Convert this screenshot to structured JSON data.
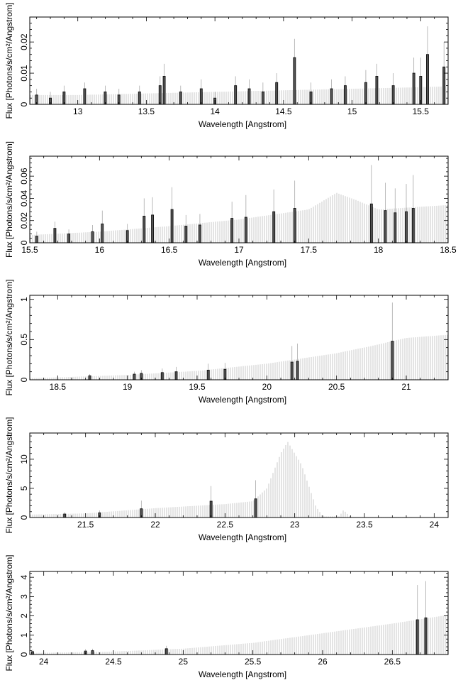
{
  "chart_data": [
    {
      "type": "bar",
      "xlabel": "Wavelength [Angstrom]",
      "ylabel": "Flux [Photons/s/cm²/Angstrom]",
      "xlim": [
        12.65,
        15.7
      ],
      "ylim": [
        0,
        0.028
      ],
      "xticks": [
        13,
        13.5,
        14,
        14.5,
        15,
        15.5
      ],
      "xtick_labels": [
        "13",
        "13.5",
        "14",
        "14.5",
        "15",
        "15.5"
      ],
      "yticks": [
        0,
        0.01,
        0.02
      ],
      "ytick_labels": [
        "0",
        "0.01",
        "0.02"
      ],
      "model": [
        [
          12.65,
          0.003
        ],
        [
          13.0,
          0.003
        ],
        [
          13.5,
          0.0035
        ],
        [
          14.0,
          0.004
        ],
        [
          14.5,
          0.0045
        ],
        [
          15.0,
          0.005
        ],
        [
          15.5,
          0.0055
        ],
        [
          15.7,
          0.0058
        ]
      ],
      "observed": [
        {
          "x": 12.7,
          "y": 0.003,
          "err": 0.002
        },
        {
          "x": 12.8,
          "y": 0.002,
          "err": 0.002
        },
        {
          "x": 12.9,
          "y": 0.004,
          "err": 0.002
        },
        {
          "x": 13.05,
          "y": 0.005,
          "err": 0.002
        },
        {
          "x": 13.2,
          "y": 0.004,
          "err": 0.002
        },
        {
          "x": 13.3,
          "y": 0.003,
          "err": 0.002
        },
        {
          "x": 13.45,
          "y": 0.004,
          "err": 0.002
        },
        {
          "x": 13.6,
          "y": 0.006,
          "err": 0.003
        },
        {
          "x": 13.63,
          "y": 0.009,
          "err": 0.004
        },
        {
          "x": 13.75,
          "y": 0.004,
          "err": 0.002
        },
        {
          "x": 13.9,
          "y": 0.005,
          "err": 0.003
        },
        {
          "x": 14.0,
          "y": 0.002,
          "err": 0.002
        },
        {
          "x": 14.15,
          "y": 0.006,
          "err": 0.003
        },
        {
          "x": 14.25,
          "y": 0.005,
          "err": 0.003
        },
        {
          "x": 14.35,
          "y": 0.004,
          "err": 0.003
        },
        {
          "x": 14.45,
          "y": 0.007,
          "err": 0.003
        },
        {
          "x": 14.58,
          "y": 0.015,
          "err": 0.006
        },
        {
          "x": 14.7,
          "y": 0.004,
          "err": 0.003
        },
        {
          "x": 14.85,
          "y": 0.005,
          "err": 0.003
        },
        {
          "x": 14.95,
          "y": 0.006,
          "err": 0.003
        },
        {
          "x": 15.1,
          "y": 0.007,
          "err": 0.004
        },
        {
          "x": 15.18,
          "y": 0.009,
          "err": 0.004
        },
        {
          "x": 15.3,
          "y": 0.006,
          "err": 0.004
        },
        {
          "x": 15.45,
          "y": 0.01,
          "err": 0.005
        },
        {
          "x": 15.5,
          "y": 0.009,
          "err": 0.006
        },
        {
          "x": 15.55,
          "y": 0.016,
          "err": 0.009
        },
        {
          "x": 15.67,
          "y": 0.012,
          "err": 0.008
        }
      ]
    },
    {
      "type": "bar",
      "xlabel": "Wavelength [Angstrom]",
      "ylabel": "Flux [Photons/s/cm²/Angstrom]",
      "xlim": [
        15.5,
        18.5
      ],
      "ylim": [
        0,
        0.078
      ],
      "xticks": [
        15.5,
        16,
        16.5,
        17,
        17.5,
        18,
        18.5
      ],
      "xtick_labels": [
        "15.5",
        "16",
        "16.5",
        "17",
        "17.5",
        "18",
        "18.5"
      ],
      "yticks": [
        0,
        0.02,
        0.04,
        0.06
      ],
      "ytick_labels": [
        "0",
        "0.02",
        "0.04",
        "0.06"
      ],
      "model": [
        [
          15.5,
          0.007
        ],
        [
          16.0,
          0.01
        ],
        [
          16.5,
          0.015
        ],
        [
          17.0,
          0.021
        ],
        [
          17.5,
          0.03
        ],
        [
          17.7,
          0.045
        ],
        [
          17.85,
          0.038
        ],
        [
          18.0,
          0.03
        ],
        [
          18.5,
          0.034
        ]
      ],
      "observed": [
        {
          "x": 15.55,
          "y": 0.006,
          "err": 0.004
        },
        {
          "x": 15.68,
          "y": 0.013,
          "err": 0.006
        },
        {
          "x": 15.78,
          "y": 0.008,
          "err": 0.004
        },
        {
          "x": 15.95,
          "y": 0.01,
          "err": 0.006
        },
        {
          "x": 16.02,
          "y": 0.017,
          "err": 0.012
        },
        {
          "x": 16.2,
          "y": 0.011,
          "err": 0.006
        },
        {
          "x": 16.32,
          "y": 0.024,
          "err": 0.016
        },
        {
          "x": 16.38,
          "y": 0.025,
          "err": 0.016
        },
        {
          "x": 16.52,
          "y": 0.03,
          "err": 0.02
        },
        {
          "x": 16.62,
          "y": 0.015,
          "err": 0.01
        },
        {
          "x": 16.72,
          "y": 0.016,
          "err": 0.01
        },
        {
          "x": 16.95,
          "y": 0.022,
          "err": 0.015
        },
        {
          "x": 17.05,
          "y": 0.023,
          "err": 0.02
        },
        {
          "x": 17.25,
          "y": 0.028,
          "err": 0.02
        },
        {
          "x": 17.4,
          "y": 0.031,
          "err": 0.025
        },
        {
          "x": 17.95,
          "y": 0.035,
          "err": 0.035
        },
        {
          "x": 18.05,
          "y": 0.029,
          "err": 0.025
        },
        {
          "x": 18.12,
          "y": 0.027,
          "err": 0.022
        },
        {
          "x": 18.2,
          "y": 0.028,
          "err": 0.025
        },
        {
          "x": 18.25,
          "y": 0.031,
          "err": 0.03
        }
      ]
    },
    {
      "type": "bar",
      "xlabel": "Wavelength [Angstrom]",
      "ylabel": "Flux [Photons/s/cm²/Angstrom]",
      "xlim": [
        18.3,
        21.3
      ],
      "ylim": [
        0,
        1.05
      ],
      "xticks": [
        18.5,
        19,
        19.5,
        20,
        20.5,
        21
      ],
      "xtick_labels": [
        "18.5",
        "19",
        "19.5",
        "20",
        "20.5",
        "21"
      ],
      "yticks": [
        0,
        0.5,
        1
      ],
      "ytick_labels": [
        "0",
        "0.5",
        "1"
      ],
      "model": [
        [
          18.3,
          0.02
        ],
        [
          18.5,
          0.03
        ],
        [
          19.0,
          0.06
        ],
        [
          19.5,
          0.11
        ],
        [
          20.0,
          0.2
        ],
        [
          20.5,
          0.33
        ],
        [
          20.75,
          0.42
        ],
        [
          21.0,
          0.52
        ],
        [
          21.3,
          0.56
        ]
      ],
      "observed": [
        {
          "x": 18.73,
          "y": 0.05,
          "err": 0.02
        },
        {
          "x": 19.05,
          "y": 0.07,
          "err": 0.03
        },
        {
          "x": 19.1,
          "y": 0.08,
          "err": 0.04
        },
        {
          "x": 19.25,
          "y": 0.09,
          "err": 0.05
        },
        {
          "x": 19.35,
          "y": 0.1,
          "err": 0.06
        },
        {
          "x": 19.58,
          "y": 0.12,
          "err": 0.08
        },
        {
          "x": 19.7,
          "y": 0.13,
          "err": 0.08
        },
        {
          "x": 20.18,
          "y": 0.22,
          "err": 0.2
        },
        {
          "x": 20.22,
          "y": 0.23,
          "err": 0.22
        },
        {
          "x": 20.9,
          "y": 0.48,
          "err": 0.48
        }
      ]
    },
    {
      "type": "bar",
      "xlabel": "Wavelength [Angstrom]",
      "ylabel": "Flux [Photons/s/cm²/Angstrom]",
      "xlim": [
        21.1,
        24.1
      ],
      "ylim": [
        0,
        14.5
      ],
      "xticks": [
        21.5,
        22,
        22.5,
        23,
        23.5,
        24
      ],
      "xtick_labels": [
        "21.5",
        "22",
        "22.5",
        "23",
        "23.5",
        "24"
      ],
      "yticks": [
        0,
        5,
        10
      ],
      "ytick_labels": [
        "0",
        "5",
        "10"
      ],
      "model": [
        [
          21.1,
          0.5
        ],
        [
          21.5,
          0.7
        ],
        [
          22.0,
          1.6
        ],
        [
          22.5,
          2.3
        ],
        [
          22.7,
          2.8
        ],
        [
          22.8,
          5.0
        ],
        [
          22.9,
          11.0
        ],
        [
          22.95,
          13.0
        ],
        [
          23.05,
          9.0
        ],
        [
          23.15,
          2.0
        ],
        [
          23.2,
          0.2
        ],
        [
          23.32,
          0.2
        ],
        [
          23.35,
          1.3
        ],
        [
          23.4,
          0.1
        ],
        [
          24.1,
          0.05
        ]
      ],
      "observed": [
        {
          "x": 21.35,
          "y": 0.6,
          "err": 0.3
        },
        {
          "x": 21.6,
          "y": 0.8,
          "err": 0.4
        },
        {
          "x": 21.9,
          "y": 1.5,
          "err": 1.4
        },
        {
          "x": 22.4,
          "y": 2.8,
          "err": 2.6
        },
        {
          "x": 22.72,
          "y": 3.2,
          "err": 3.2
        }
      ]
    },
    {
      "type": "bar",
      "xlabel": "Wavelength [Angstrom]",
      "ylabel": "Flux [Photons/s/cm²/Angstrom]",
      "xlim": [
        23.9,
        26.9
      ],
      "ylim": [
        0,
        4.3
      ],
      "xticks": [
        24,
        24.5,
        25,
        25.5,
        26,
        26.5
      ],
      "xtick_labels": [
        "24",
        "24.5",
        "25",
        "25.5",
        "26",
        "26.5"
      ],
      "yticks": [
        0,
        1,
        2,
        3,
        4
      ],
      "ytick_labels": [
        "0",
        "1",
        "2",
        "3",
        "4"
      ],
      "model": [
        [
          23.9,
          0.08
        ],
        [
          24.5,
          0.15
        ],
        [
          25.0,
          0.3
        ],
        [
          25.5,
          0.6
        ],
        [
          26.0,
          1.1
        ],
        [
          26.5,
          1.6
        ],
        [
          26.9,
          2.05
        ]
      ],
      "observed": [
        {
          "x": 23.92,
          "y": 0.15,
          "err": 0.1
        },
        {
          "x": 24.3,
          "y": 0.18,
          "err": 0.1
        },
        {
          "x": 24.35,
          "y": 0.2,
          "err": 0.1
        },
        {
          "x": 24.88,
          "y": 0.3,
          "err": 0.15
        },
        {
          "x": 26.68,
          "y": 1.8,
          "err": 1.8
        },
        {
          "x": 26.74,
          "y": 1.9,
          "err": 1.9
        }
      ]
    }
  ]
}
